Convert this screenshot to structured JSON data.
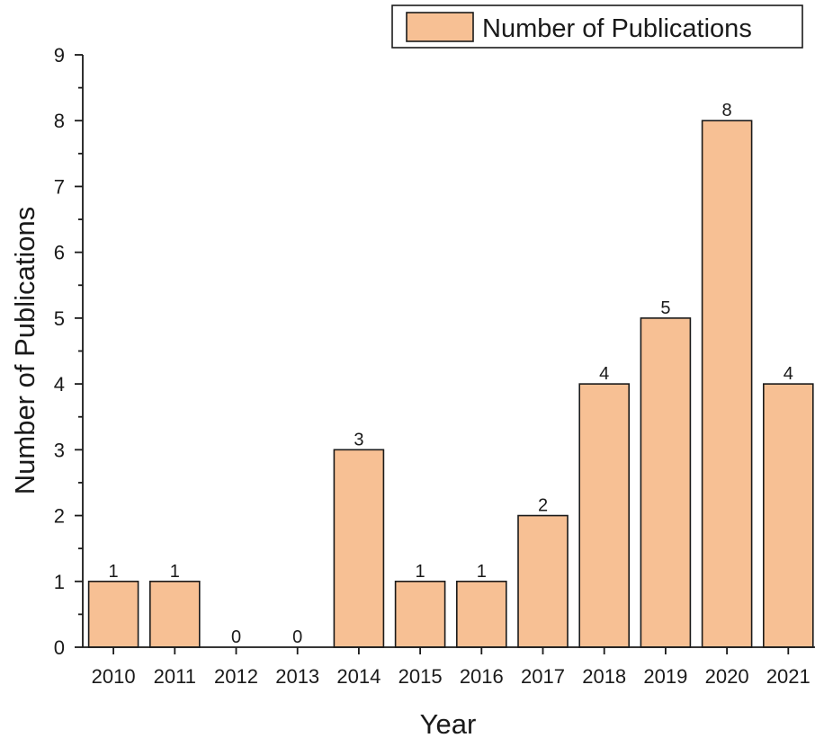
{
  "chart_data": {
    "type": "bar",
    "categories": [
      "2010",
      "2011",
      "2012",
      "2013",
      "2014",
      "2015",
      "2016",
      "2017",
      "2018",
      "2019",
      "2020",
      "2021"
    ],
    "series": [
      {
        "name": "Number of Publications",
        "values": [
          1,
          1,
          0,
          0,
          3,
          1,
          1,
          2,
          4,
          5,
          8,
          4
        ],
        "color": "#f7c094"
      }
    ],
    "title": "",
    "xlabel": "Year",
    "ylabel": "Number of Publications",
    "ylim": [
      0,
      9
    ],
    "yticks": [
      0,
      1,
      2,
      3,
      4,
      5,
      6,
      7,
      8,
      9
    ],
    "grid": false,
    "legend_position": "top-right",
    "data_labels": true
  }
}
